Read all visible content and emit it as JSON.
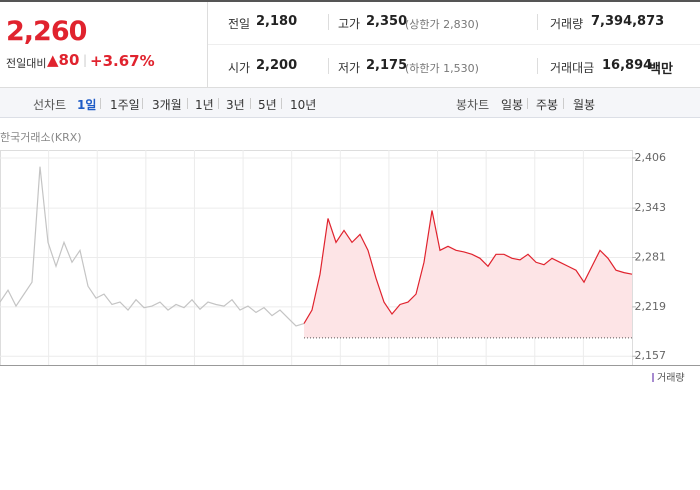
{
  "quote": {
    "price": "2,260",
    "change_label": "전일대비",
    "change": "80",
    "change_pct": "+3.67%"
  },
  "stats": [
    {
      "label": "전일",
      "value": "2,180"
    },
    {
      "label": "고가",
      "value": "2,350",
      "note": "(상한가 2,830)"
    },
    {
      "label": "거래량",
      "value": "7,394,873"
    },
    {
      "label": "시가",
      "value": "2,200"
    },
    {
      "label": "저가",
      "value": "2,175",
      "note": "(하한가 1,530)"
    },
    {
      "label": "거래대금",
      "value": "16,894",
      "unit": "백만"
    }
  ],
  "tabs": {
    "line_label": "선차트",
    "line": [
      "1일",
      "1주일",
      "3개월",
      "1년",
      "3년",
      "5년",
      "10년"
    ],
    "candle_label": "봉차트",
    "candle": [
      "일봉",
      "주봉",
      "월봉"
    ]
  },
  "chart_data": {
    "type": "line",
    "source": "한국거래소(KRX)",
    "ylim": [
      2146,
      2416
    ],
    "yticks": [
      {
        "value": 2406,
        "label": "2,406"
      },
      {
        "value": 2343,
        "label": "2,343"
      },
      {
        "value": 2281,
        "label": "2,281"
      },
      {
        "value": 2219,
        "label": "2,219"
      },
      {
        "value": 2157,
        "label": "2,157"
      }
    ],
    "baseline": 2180,
    "fill": "#fde4e6",
    "volume_legend": "거래량",
    "series": [
      {
        "color": "#c4c4c4",
        "values": [
          2225,
          2240,
          2220,
          2235,
          2250,
          2395,
          2300,
          2270,
          2300,
          2275,
          2290,
          2245,
          2230,
          2235,
          2222,
          2225,
          2215,
          2228,
          2218,
          2220,
          2225,
          2215,
          2222,
          2218,
          2228,
          2216,
          2225,
          2222,
          2220,
          2228,
          2215,
          2220,
          2212,
          2218,
          2208,
          2215,
          2205,
          2195,
          2198,
          null,
          null,
          null,
          null,
          null,
          null,
          null,
          null,
          null,
          null,
          null,
          null,
          null,
          null,
          null,
          null,
          null,
          null,
          null,
          null,
          null,
          null,
          null,
          null,
          null,
          null,
          null,
          null,
          null,
          null,
          null,
          null,
          null,
          null,
          null,
          null,
          null,
          null,
          null,
          null,
          null
        ]
      },
      {
        "color": "#e0232e",
        "values": [
          null,
          null,
          null,
          null,
          null,
          null,
          null,
          null,
          null,
          null,
          null,
          null,
          null,
          null,
          null,
          null,
          null,
          null,
          null,
          null,
          null,
          null,
          null,
          null,
          null,
          null,
          null,
          null,
          null,
          null,
          null,
          null,
          null,
          null,
          null,
          null,
          null,
          null,
          2198,
          2215,
          2260,
          2330,
          2300,
          2315,
          2300,
          2310,
          2290,
          2255,
          2225,
          2210,
          2222,
          2225,
          2235,
          2275,
          2340,
          2290,
          2295,
          2290,
          2288,
          2285,
          2280,
          2270,
          2285,
          2285,
          2280,
          2278,
          2285,
          2275,
          2272,
          2280,
          2275,
          2270,
          2265,
          2250,
          2270,
          2290,
          2280,
          2265,
          2262,
          2260
        ]
      }
    ]
  }
}
